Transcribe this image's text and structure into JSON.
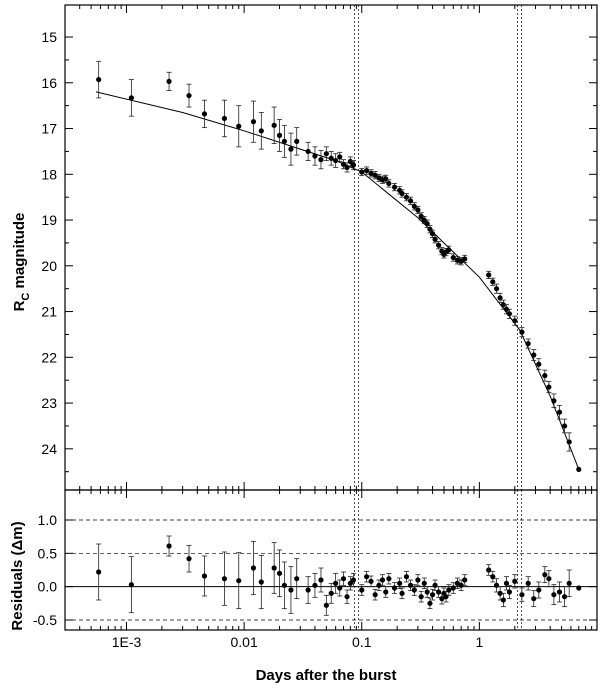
{
  "chart_data": [
    {
      "type": "scatter",
      "ylabel_main": "R",
      "ylabel_sub": "C",
      "ylabel_rest": " magnitude",
      "xlabel": "Days after the burst",
      "x_scale": "log",
      "xlim": [
        0.0003,
        10
      ],
      "ylim": [
        24.9,
        14.3
      ],
      "y_inverted": true,
      "y_ticks": [
        "15",
        "16",
        "17",
        "18",
        "19",
        "20",
        "21",
        "22",
        "23",
        "24"
      ],
      "x_tick_labels": [
        "1E-3",
        "0.01",
        "0.1",
        "1"
      ],
      "vertical_markers": [
        0.09,
        2.2
      ],
      "fit_line": {
        "x": [
          0.00055,
          0.003,
          0.01,
          0.03,
          0.06,
          0.1,
          0.3,
          1.0,
          2.2,
          4.0,
          7.0
        ],
        "y": [
          16.2,
          16.65,
          17.05,
          17.45,
          17.7,
          17.95,
          18.95,
          20.25,
          21.4,
          22.85,
          24.45
        ]
      },
      "series": [
        {
          "points": [
            [
              0.00058,
              15.93,
              0.4
            ],
            [
              0.0011,
              16.33,
              0.4
            ],
            [
              0.0023,
              15.97,
              0.2
            ],
            [
              0.0034,
              16.28,
              0.25
            ],
            [
              0.0046,
              16.68,
              0.3
            ],
            [
              0.0068,
              16.78,
              0.4
            ],
            [
              0.009,
              16.95,
              0.45
            ],
            [
              0.012,
              16.85,
              0.45
            ],
            [
              0.014,
              17.05,
              0.4
            ],
            [
              0.018,
              16.93,
              0.4
            ],
            [
              0.02,
              17.15,
              0.35
            ],
            [
              0.022,
              17.28,
              0.35
            ],
            [
              0.025,
              17.45,
              0.35
            ],
            [
              0.028,
              17.28,
              0.3
            ],
            [
              0.035,
              17.5,
              0.2
            ],
            [
              0.04,
              17.6,
              0.2
            ],
            [
              0.045,
              17.68,
              0.2
            ],
            [
              0.05,
              17.55,
              0.15
            ],
            [
              0.055,
              17.65,
              0.15
            ],
            [
              0.06,
              17.7,
              0.15
            ],
            [
              0.065,
              17.62,
              0.1
            ],
            [
              0.07,
              17.78,
              0.1
            ],
            [
              0.075,
              17.85,
              0.1
            ],
            [
              0.08,
              17.72,
              0.1
            ],
            [
              0.085,
              17.8,
              0.1
            ],
            [
              0.1,
              17.95,
              0.08
            ],
            [
              0.11,
              17.92,
              0.08
            ],
            [
              0.12,
              17.98,
              0.08
            ],
            [
              0.13,
              18.02,
              0.08
            ],
            [
              0.14,
              18.08,
              0.08
            ],
            [
              0.15,
              18.12,
              0.08
            ],
            [
              0.16,
              18.1,
              0.08
            ],
            [
              0.17,
              18.2,
              0.08
            ],
            [
              0.19,
              18.28,
              0.08
            ],
            [
              0.21,
              18.35,
              0.08
            ],
            [
              0.22,
              18.42,
              0.08
            ],
            [
              0.24,
              18.5,
              0.08
            ],
            [
              0.26,
              18.58,
              0.08
            ],
            [
              0.28,
              18.7,
              0.08
            ],
            [
              0.3,
              18.78,
              0.08
            ],
            [
              0.32,
              18.92,
              0.08
            ],
            [
              0.34,
              19.0,
              0.08
            ],
            [
              0.36,
              19.08,
              0.08
            ],
            [
              0.38,
              19.2,
              0.08
            ],
            [
              0.4,
              19.3,
              0.08
            ],
            [
              0.42,
              19.42,
              0.08
            ],
            [
              0.45,
              19.55,
              0.08
            ],
            [
              0.48,
              19.68,
              0.08
            ],
            [
              0.5,
              19.75,
              0.08
            ],
            [
              0.52,
              19.7,
              0.08
            ],
            [
              0.55,
              19.65,
              0.08
            ],
            [
              0.6,
              19.82,
              0.08
            ],
            [
              0.65,
              19.88,
              0.08
            ],
            [
              0.7,
              19.9,
              0.08
            ],
            [
              0.75,
              19.85,
              0.08
            ],
            [
              1.2,
              20.2,
              0.08
            ],
            [
              1.3,
              20.35,
              0.08
            ],
            [
              1.4,
              20.5,
              0.1
            ],
            [
              1.5,
              20.7,
              0.1
            ],
            [
              1.6,
              20.85,
              0.1
            ],
            [
              1.7,
              20.95,
              0.1
            ],
            [
              1.8,
              21.05,
              0.1
            ],
            [
              2.0,
              21.2,
              0.1
            ],
            [
              2.3,
              21.45,
              0.1
            ],
            [
              2.6,
              21.7,
              0.1
            ],
            [
              2.9,
              21.95,
              0.12
            ],
            [
              3.2,
              22.15,
              0.12
            ],
            [
              3.6,
              22.4,
              0.12
            ],
            [
              3.9,
              22.65,
              0.12
            ],
            [
              4.3,
              22.95,
              0.15
            ],
            [
              4.8,
              23.2,
              0.15
            ],
            [
              5.3,
              23.5,
              0.15
            ],
            [
              5.8,
              23.85,
              0.2
            ],
            [
              7.0,
              24.45,
              0.02
            ]
          ]
        }
      ]
    },
    {
      "type": "scatter",
      "ylabel": "Residuals (Δm)",
      "xlabel": "Days after the burst",
      "x_scale": "log",
      "xlim": [
        0.0003,
        10
      ],
      "ylim": [
        -0.65,
        1.45
      ],
      "y_ticks": [
        "1.0",
        "0.5",
        "0.0",
        "-0.5"
      ],
      "x_tick_labels": [
        "1E-3",
        "0.01",
        "0.1",
        "1"
      ],
      "dashed_reference_lines": [
        1.0,
        0.5,
        -0.5
      ],
      "zero_line": 0.0,
      "vertical_markers": [
        0.09,
        2.2
      ],
      "series": [
        {
          "points": [
            [
              0.00058,
              0.22,
              0.42
            ],
            [
              0.0011,
              0.03,
              0.42
            ],
            [
              0.0023,
              0.61,
              0.15
            ],
            [
              0.0034,
              0.42,
              0.2
            ],
            [
              0.0046,
              0.16,
              0.3
            ],
            [
              0.0068,
              0.12,
              0.4
            ],
            [
              0.009,
              0.09,
              0.42
            ],
            [
              0.012,
              0.28,
              0.4
            ],
            [
              0.014,
              0.07,
              0.4
            ],
            [
              0.018,
              0.28,
              0.38
            ],
            [
              0.02,
              0.2,
              0.35
            ],
            [
              0.022,
              0.02,
              0.35
            ],
            [
              0.025,
              -0.05,
              0.35
            ],
            [
              0.028,
              0.12,
              0.3
            ],
            [
              0.035,
              -0.05,
              0.2
            ],
            [
              0.04,
              0.02,
              0.18
            ],
            [
              0.045,
              0.1,
              0.18
            ],
            [
              0.05,
              -0.28,
              0.15
            ],
            [
              0.055,
              -0.1,
              0.15
            ],
            [
              0.06,
              0.05,
              0.15
            ],
            [
              0.065,
              -0.02,
              0.12
            ],
            [
              0.07,
              0.12,
              0.1
            ],
            [
              0.075,
              -0.15,
              0.1
            ],
            [
              0.08,
              0.05,
              0.1
            ],
            [
              0.085,
              0.1,
              0.1
            ],
            [
              0.1,
              -0.05,
              0.08
            ],
            [
              0.11,
              0.15,
              0.08
            ],
            [
              0.12,
              0.08,
              0.08
            ],
            [
              0.13,
              -0.12,
              0.08
            ],
            [
              0.14,
              0.02,
              0.08
            ],
            [
              0.15,
              0.1,
              0.08
            ],
            [
              0.16,
              -0.08,
              0.08
            ],
            [
              0.17,
              0.12,
              0.08
            ],
            [
              0.19,
              -0.02,
              0.08
            ],
            [
              0.21,
              0.05,
              0.08
            ],
            [
              0.22,
              -0.1,
              0.08
            ],
            [
              0.24,
              0.15,
              0.08
            ],
            [
              0.26,
              0.02,
              0.08
            ],
            [
              0.28,
              -0.05,
              0.08
            ],
            [
              0.3,
              0.1,
              0.08
            ],
            [
              0.32,
              -0.15,
              0.08
            ],
            [
              0.34,
              0.05,
              0.08
            ],
            [
              0.36,
              -0.08,
              0.08
            ],
            [
              0.38,
              -0.25,
              0.08
            ],
            [
              0.4,
              -0.12,
              0.08
            ],
            [
              0.42,
              0.02,
              0.08
            ],
            [
              0.45,
              -0.08,
              0.08
            ],
            [
              0.48,
              -0.18,
              0.08
            ],
            [
              0.5,
              -0.1,
              0.08
            ],
            [
              0.52,
              -0.15,
              0.08
            ],
            [
              0.55,
              -0.05,
              0.08
            ],
            [
              0.6,
              -0.02,
              0.08
            ],
            [
              0.65,
              0.05,
              0.08
            ],
            [
              0.7,
              0.02,
              0.08
            ],
            [
              0.75,
              0.1,
              0.08
            ],
            [
              1.2,
              0.25,
              0.08
            ],
            [
              1.3,
              0.15,
              0.08
            ],
            [
              1.4,
              0.02,
              0.1
            ],
            [
              1.5,
              -0.1,
              0.1
            ],
            [
              1.6,
              -0.2,
              0.1
            ],
            [
              1.7,
              0.05,
              0.1
            ],
            [
              1.8,
              -0.08,
              0.1
            ],
            [
              2.0,
              0.08,
              0.1
            ],
            [
              2.3,
              -0.12,
              0.1
            ],
            [
              2.6,
              0.05,
              0.1
            ],
            [
              2.9,
              -0.18,
              0.12
            ],
            [
              3.2,
              -0.05,
              0.12
            ],
            [
              3.6,
              0.18,
              0.12
            ],
            [
              3.9,
              0.12,
              0.12
            ],
            [
              4.3,
              -0.12,
              0.15
            ],
            [
              4.8,
              -0.08,
              0.15
            ],
            [
              5.3,
              -0.15,
              0.15
            ],
            [
              5.8,
              0.05,
              0.2
            ],
            [
              7.0,
              -0.02,
              0.02
            ]
          ]
        }
      ]
    }
  ]
}
